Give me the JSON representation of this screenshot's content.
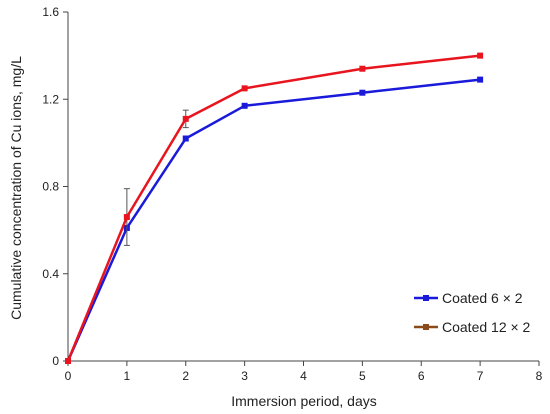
{
  "chart_data": {
    "type": "line",
    "xlabel": "Immersion period, days",
    "ylabel": "Cumulative concentration of Cu ions, mg/L",
    "xlim": [
      0,
      8
    ],
    "ylim": [
      0,
      1.6
    ],
    "xticks": [
      0,
      1,
      2,
      3,
      4,
      5,
      6,
      7,
      8
    ],
    "yticks": [
      0,
      0.4,
      0.8,
      1.2,
      1.6
    ],
    "ytick_labels": [
      "0",
      "0.4",
      "0.8",
      "1.2",
      "1.6"
    ],
    "grid": false,
    "legend_position": "bottom-right",
    "series": [
      {
        "name": "Coated 6 × 2",
        "color": "#1a1adb",
        "x": [
          0,
          1,
          2,
          3,
          5,
          7
        ],
        "y": [
          0,
          0.61,
          1.02,
          1.17,
          1.23,
          1.29
        ]
      },
      {
        "name": "Coated 12 × 2",
        "color": "#e8141e",
        "legend_color": "#8a4a1a",
        "x": [
          0,
          1,
          2,
          3,
          5,
          7
        ],
        "y": [
          0,
          0.66,
          1.11,
          1.25,
          1.34,
          1.4
        ],
        "error": [
          0,
          0.13,
          0.04,
          0,
          0,
          0
        ]
      }
    ]
  }
}
